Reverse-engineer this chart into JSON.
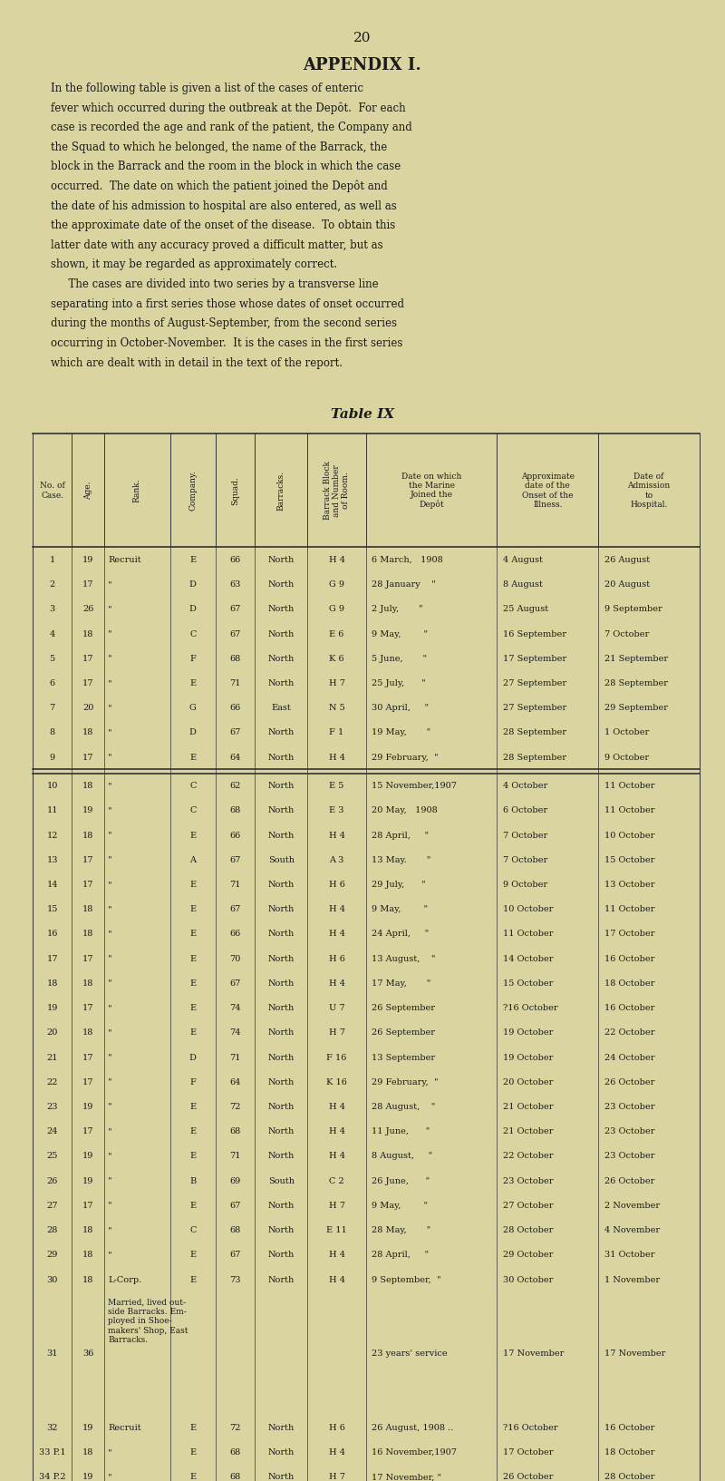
{
  "page_number": "20",
  "appendix_title": "APPENDIX I.",
  "body_text": [
    "In the following table is given a list of the cases of enteric",
    "fever which occurred during the outbreak at the Depôt.  For each",
    "case is recorded the age and rank of the patient, the Company and",
    "the Squad to which he belonged, the name of the Barrack, the",
    "block in the Barrack and the room in the block in which the case",
    "occurred.  The date on which the patient joined the Depôt and",
    "the date of his admission to hospital are also entered, as well as",
    "the approximate date of the onset of the disease.  To obtain this",
    "latter date with any accuracy proved a difficult matter, but as",
    "shown, it may be regarded as approximately correct.",
    "  The cases are divided into two series by a transverse line",
    "separating into a first series those whose dates of onset occurred",
    "during the months of August-September, from the second series",
    "occurring in October-November.  It is the cases in the first series",
    "which are dealt with in detail in the text of the report."
  ],
  "table_title": "Table IX",
  "col_headers": [
    "No. of\nCase.",
    "Age.",
    "Rank.",
    "Company.",
    "Squad.",
    "Barracks.",
    "Barrack Block\nand Number\nof Room.",
    "Date on which\nthe Marine\nJoined the\nDepôt",
    "Approximate\ndate of the\nOnset of the\nIllness.",
    "Date of\nAdmission\nto\nHospital."
  ],
  "rows": [
    [
      "1",
      "19",
      "Recruit",
      "E",
      "66",
      "North",
      "H 4",
      "6 March,   1908",
      "4 August",
      "26 August"
    ],
    [
      "2",
      "17",
      "\"",
      "D",
      "63",
      "North",
      "G 9",
      "28 January    \"",
      "8 August",
      "20 August"
    ],
    [
      "3",
      "26",
      "\"",
      "D",
      "67",
      "North",
      "G 9",
      "2 July,       \"",
      "25 August",
      "9 September"
    ],
    [
      "4",
      "18",
      "\"",
      "C",
      "67",
      "North",
      "E 6",
      "9 May,        \"",
      "16 September",
      "7 October"
    ],
    [
      "5",
      "17",
      "\"",
      "F",
      "68",
      "North",
      "K 6",
      "5 June,       \"",
      "17 September",
      "21 September"
    ],
    [
      "6",
      "17",
      "\"",
      "E",
      "71",
      "North",
      "H 7",
      "25 July,      \"",
      "27 September",
      "28 September"
    ],
    [
      "7",
      "20",
      "\"",
      "G",
      "66",
      "East",
      "N 5",
      "30 April,     \"",
      "27 September",
      "29 September"
    ],
    [
      "8",
      "18",
      "\"",
      "D",
      "67",
      "North",
      "F 1",
      "19 May,       \"",
      "28 September",
      "1 October"
    ],
    [
      "9",
      "17",
      "\"",
      "E",
      "64",
      "North",
      "H 4",
      "29 February,  \"",
      "28 September",
      "9 October"
    ],
    [
      "SEPARATOR",
      "",
      "",
      "",
      "",
      "",
      "",
      "",
      "",
      ""
    ],
    [
      "10",
      "18",
      "\"",
      "C",
      "62",
      "North",
      "E 5",
      "15 November,1907",
      "4 October",
      "11 October"
    ],
    [
      "11",
      "19",
      "\"",
      "C",
      "68",
      "North",
      "E 3",
      "20 May,   1908",
      "6 October",
      "11 October"
    ],
    [
      "12",
      "18",
      "\"",
      "E",
      "66",
      "North",
      "H 4",
      "28 April,     \"",
      "7 October",
      "10 October"
    ],
    [
      "13",
      "17",
      "\"",
      "A",
      "67",
      "South",
      "A 3",
      "13 May.       \"",
      "7 October",
      "15 October"
    ],
    [
      "14",
      "17",
      "\"",
      "E",
      "71",
      "North",
      "H 6",
      "29 July,      \"",
      "9 October",
      "13 October"
    ],
    [
      "15",
      "18",
      "\"",
      "E",
      "67",
      "North",
      "H 4",
      "9 May,        \"",
      "10 October",
      "11 October"
    ],
    [
      "16",
      "18",
      "\"",
      "E",
      "66",
      "North",
      "H 4",
      "24 April,     \"",
      "11 October",
      "17 October"
    ],
    [
      "17",
      "17",
      "\"",
      "E",
      "70",
      "North",
      "H 6",
      "13 August,    \"",
      "14 October",
      "16 October"
    ],
    [
      "18",
      "18",
      "\"",
      "E",
      "67",
      "North",
      "H 4",
      "17 May,       \"",
      "15 October",
      "18 October"
    ],
    [
      "19",
      "17",
      "\"",
      "E",
      "74",
      "North",
      "U 7",
      "26 September",
      "?16 October",
      "16 October"
    ],
    [
      "20",
      "18",
      "\"",
      "E",
      "74",
      "North",
      "H 7",
      "26 September",
      "19 October",
      "22 October"
    ],
    [
      "21",
      "17",
      "\"",
      "D",
      "71",
      "North",
      "F 16",
      "13 September",
      "19 October",
      "24 October"
    ],
    [
      "22",
      "17",
      "\"",
      "F",
      "64",
      "North",
      "K 16",
      "29 February,  \"",
      "20 October",
      "26 October"
    ],
    [
      "23",
      "19",
      "\"",
      "E",
      "72",
      "North",
      "H 4",
      "28 August,    \"",
      "21 October",
      "23 October"
    ],
    [
      "24",
      "17",
      "\"",
      "E",
      "68",
      "North",
      "H 4",
      "11 June,      \"",
      "21 October",
      "23 October"
    ],
    [
      "25",
      "19",
      "\"",
      "E",
      "71",
      "North",
      "H 4",
      "8 August,     \"",
      "22 October",
      "23 October"
    ],
    [
      "26",
      "19",
      "\"",
      "B",
      "69",
      "South",
      "C 2",
      "26 June,      \"",
      "23 October",
      "26 October"
    ],
    [
      "27",
      "17",
      "\"",
      "E",
      "67",
      "North",
      "H 7",
      "9 May,        \"",
      "27 October",
      "2 November"
    ],
    [
      "28",
      "18",
      "\"",
      "C",
      "68",
      "North",
      "E 11",
      "28 May,       \"",
      "28 October",
      "4 November"
    ],
    [
      "29",
      "18",
      "\"",
      "E",
      "67",
      "North",
      "H 4",
      "28 April,     \"",
      "29 October",
      "31 October"
    ],
    [
      "30",
      "18",
      "L-Corp.",
      "E",
      "73",
      "North",
      "H 4",
      "9 September,  \"",
      "30 October",
      "1 November"
    ],
    [
      "31",
      "36",
      "Married, lived out-\nside Barracks. Em-\nployed in Shoe-\nmakers' Shop, East\nBarracks.",
      "",
      "",
      "",
      "",
      "23 years' service",
      "17 November",
      "17 November"
    ],
    [
      "32",
      "19",
      "Recruit",
      "E",
      "72",
      "North",
      "H 6",
      "26 August, 1908 ..",
      "?16 October",
      "16 October"
    ],
    [
      "33 P.1",
      "18",
      "\"",
      "E",
      "68",
      "North",
      "H 4",
      "16 November,1907",
      "17 October",
      "18 October"
    ],
    [
      "34 P.2",
      "19",
      "\"",
      "E",
      "68",
      "North",
      "H 7",
      "17 November, \"",
      "26 October",
      "28 October"
    ]
  ],
  "bg_color": "#d9d4a0",
  "text_color": "#1a1a1a",
  "separator_after_row9": true
}
